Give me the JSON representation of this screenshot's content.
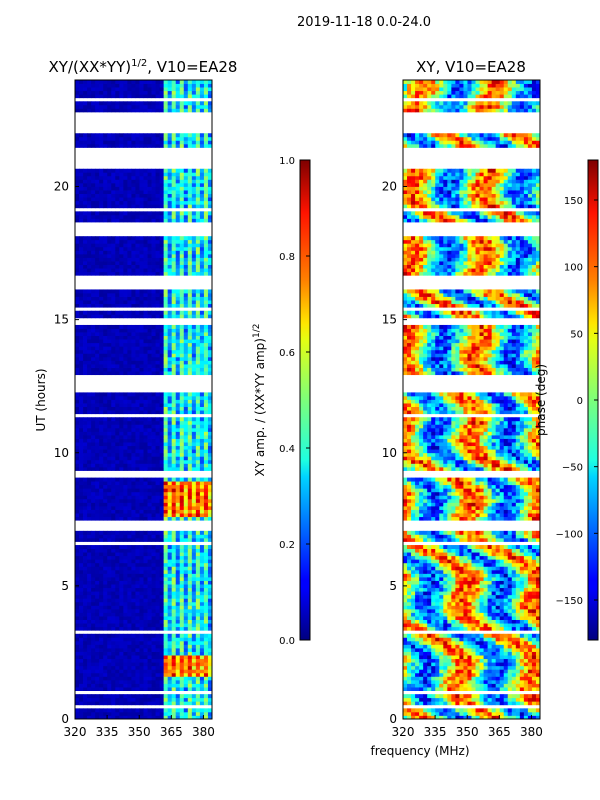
{
  "figure": {
    "suptitle": "2019-11-18 0.0-24.0",
    "xlabel": "frequency (MHz)"
  },
  "chart_data": [
    {
      "type": "heatmap",
      "title": "XY/(XX*YY)",
      "title_sup": "1/2",
      "title_tail": ", V10=EA28",
      "xlabel": "",
      "ylabel": "UT (hours)",
      "xlim": [
        320,
        384
      ],
      "ylim": [
        0,
        24
      ],
      "xticks": [
        320,
        335,
        350,
        365,
        380
      ],
      "yticks": [
        0,
        5,
        10,
        15,
        20
      ],
      "colorbar": {
        "label": "XY amp. / (XX*YY amp)",
        "label_sup": "1/2",
        "range": [
          0.0,
          1.0
        ],
        "ticks": [
          "0.0",
          "0.2",
          "0.4",
          "0.6",
          "0.8",
          "1.0"
        ]
      },
      "data_gaps_hours": [
        [
          0.35,
          0.55
        ],
        [
          1.0,
          1.05
        ],
        [
          2.0,
          2.05
        ],
        [
          3.25,
          3.3
        ],
        [
          4.0,
          4.05
        ],
        [
          6.55,
          6.65
        ],
        [
          7.1,
          7.45
        ],
        [
          9.05,
          9.35
        ],
        [
          11.4,
          11.5
        ],
        [
          12.3,
          12.95
        ],
        [
          14.85,
          15.05
        ],
        [
          15.3,
          15.4
        ],
        [
          16.1,
          16.6
        ],
        [
          18.1,
          18.6
        ],
        [
          19.1,
          19.2
        ],
        [
          20.6,
          21.4
        ],
        [
          21.95,
          22.85
        ],
        [
          23.2,
          23.3
        ],
        [
          23.6,
          23.65
        ]
      ]
    },
    {
      "type": "heatmap",
      "title": "XY, V10=EA28",
      "xlabel": "frequency (MHz)",
      "ylabel": "",
      "xlim": [
        320,
        384
      ],
      "ylim": [
        0,
        24
      ],
      "xticks": [
        320,
        335,
        350,
        365,
        380
      ],
      "yticks": [
        0,
        5,
        10,
        15,
        20
      ],
      "colorbar": {
        "label": "phase (deg)",
        "range": [
          -180,
          180
        ],
        "ticks": [
          "−150",
          "−100",
          "−50",
          "0",
          "50",
          "100",
          "150"
        ]
      },
      "data_gaps_hours": [
        [
          0.35,
          0.55
        ],
        [
          1.0,
          1.05
        ],
        [
          2.0,
          2.05
        ],
        [
          3.25,
          3.3
        ],
        [
          4.0,
          4.05
        ],
        [
          6.55,
          6.65
        ],
        [
          7.1,
          7.45
        ],
        [
          9.05,
          9.35
        ],
        [
          11.4,
          11.5
        ],
        [
          12.3,
          12.95
        ],
        [
          14.85,
          15.05
        ],
        [
          15.3,
          15.4
        ],
        [
          16.1,
          16.6
        ],
        [
          18.1,
          18.6
        ],
        [
          19.1,
          19.2
        ],
        [
          20.6,
          21.4
        ],
        [
          21.95,
          22.85
        ],
        [
          23.2,
          23.3
        ],
        [
          23.6,
          23.65
        ]
      ]
    }
  ]
}
